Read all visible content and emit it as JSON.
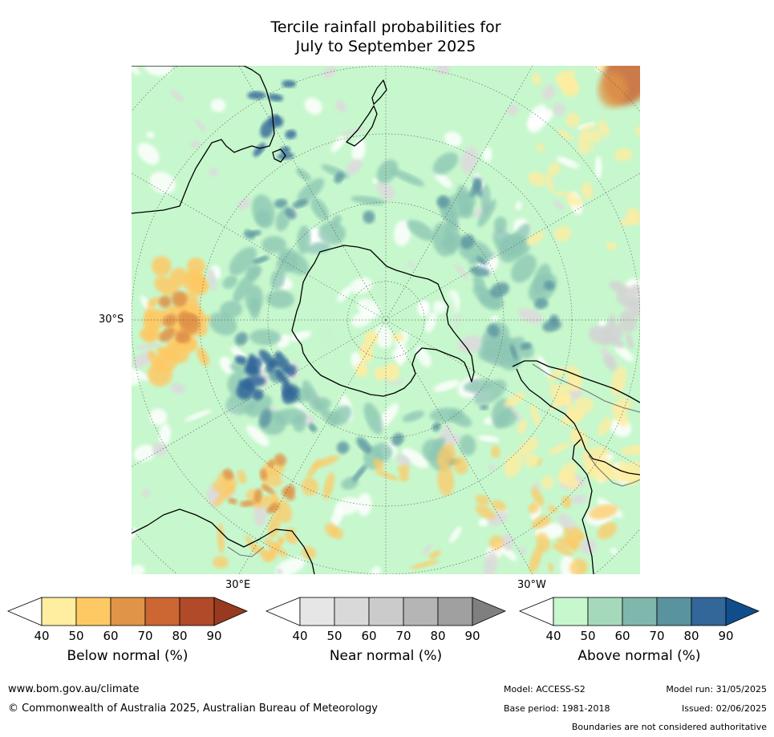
{
  "title": {
    "line1": "Tercile rainfall probabilities for",
    "line2": "July to September 2025"
  },
  "map_labels": {
    "lat_30s": "30°S",
    "lon_30e": "30°E",
    "lon_30w": "30°W"
  },
  "colorbars": [
    {
      "title": "Below normal (%)",
      "ticks": [
        "40",
        "50",
        "60",
        "70",
        "80",
        "90"
      ],
      "colors": [
        "#ffffff",
        "#ffeda0",
        "#fec965",
        "#e09448",
        "#cc6633",
        "#b04a29",
        "#983a20"
      ]
    },
    {
      "title": "Near normal (%)",
      "ticks": [
        "40",
        "50",
        "60",
        "70",
        "80",
        "90"
      ],
      "colors": [
        "#ffffff",
        "#e6e6e6",
        "#d9d9d9",
        "#cbcbcb",
        "#b5b5b5",
        "#a0a0a0",
        "#7f7f7f"
      ]
    },
    {
      "title": "Above normal (%)",
      "ticks": [
        "40",
        "50",
        "60",
        "70",
        "80",
        "90"
      ],
      "colors": [
        "#ffffff",
        "#c7f7cd",
        "#a6d9bb",
        "#7fb7ad",
        "#5a93a0",
        "#336699",
        "#104e8b"
      ]
    }
  ],
  "footer": {
    "website": "www.bom.gov.au/climate",
    "copyright": "© Commonwealth of Australia 2025, Australian Bureau of Meteorology",
    "model": "Model: ACCESS-S2",
    "model_run": "Model run: 31/05/2025",
    "base_period": "Base period: 1981-2018",
    "issued": "Issued: 02/06/2025",
    "disclaimer": "Boundaries are not considered authoritative"
  }
}
